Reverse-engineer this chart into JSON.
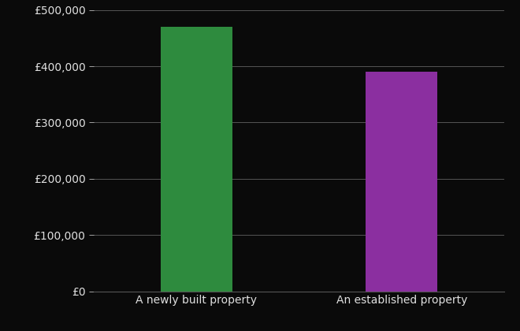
{
  "categories": [
    "A newly built property",
    "An established property"
  ],
  "values": [
    470000,
    390000
  ],
  "bar_colors": [
    "#2e8b3e",
    "#8b2fa0"
  ],
  "background_color": "#0a0a0a",
  "text_color": "#e0e0e0",
  "grid_color": "#555555",
  "ylim": [
    0,
    500000
  ],
  "yticks": [
    0,
    100000,
    200000,
    300000,
    400000,
    500000
  ],
  "bar_width": 0.35,
  "tick_fontsize": 10,
  "label_fontsize": 10
}
